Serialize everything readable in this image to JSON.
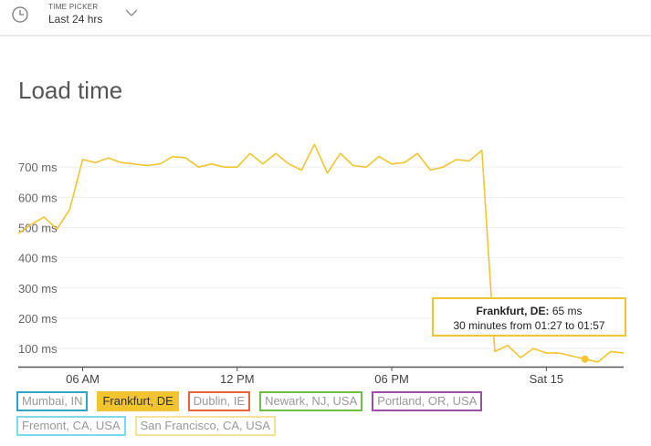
{
  "header": {
    "time_picker_label": "TIME PICKER",
    "time_picker_value": "Last 24 hrs",
    "icon": "clock-icon",
    "chevron_icon": "chevron-down-icon"
  },
  "chart_title": "Load time",
  "tooltip": {
    "series": "Frankfurt, DE:",
    "value": "65 ms",
    "range": "30 minutes from 01:27 to 01:57"
  },
  "legend": [
    {
      "label": "Mumbai, IN",
      "color": "#2fa4c9",
      "active": false
    },
    {
      "label": "Frankfurt, DE",
      "color": "#f2c530",
      "active": true
    },
    {
      "label": "Dublin, IE",
      "color": "#e8653a",
      "active": false
    },
    {
      "label": "Newark, NJ, USA",
      "color": "#6cc04a",
      "active": false
    },
    {
      "label": "Portland, OR, USA",
      "color": "#9d4faa",
      "active": false
    },
    {
      "label": "Fremont, CA, USA",
      "color": "#7fd8ec",
      "active": false
    },
    {
      "label": "San Francisco, CA, USA",
      "color": "#f5e39a",
      "active": false
    }
  ],
  "chart_data": {
    "type": "line",
    "title": "Load time",
    "ylim": [
      40,
      800
    ],
    "yticks": [
      100,
      200,
      300,
      400,
      500,
      600,
      700
    ],
    "ytick_labels": [
      "100 ms",
      "200 ms",
      "300 ms",
      "400 ms",
      "500 ms",
      "600 ms",
      "700 ms"
    ],
    "xlim": [
      0,
      47
    ],
    "xticks": [
      5,
      17,
      29,
      41
    ],
    "xtick_labels": [
      "06 AM",
      "12 PM",
      "06 PM",
      "Sat 15"
    ],
    "grid": true,
    "legend_position": "bottom",
    "series": [
      {
        "name": "Frankfurt, DE",
        "color": "#f2c530",
        "x": [
          0,
          1,
          2,
          3,
          4,
          5,
          6,
          7,
          8,
          9,
          10,
          11,
          12,
          13,
          14,
          15,
          16,
          17,
          18,
          19,
          20,
          21,
          22,
          23,
          24,
          25,
          26,
          27,
          28,
          29,
          30,
          31,
          32,
          33,
          34,
          35,
          36,
          37,
          38,
          39,
          40,
          41,
          42,
          43,
          44,
          45,
          46,
          47
        ],
        "values": [
          480,
          510,
          535,
          495,
          560,
          725,
          715,
          730,
          715,
          710,
          705,
          710,
          735,
          730,
          700,
          710,
          700,
          700,
          745,
          710,
          745,
          710,
          690,
          775,
          680,
          745,
          705,
          700,
          735,
          710,
          715,
          745,
          690,
          700,
          725,
          720,
          755,
          90,
          110,
          70,
          100,
          85,
          85,
          75,
          65,
          55,
          90,
          85
        ]
      }
    ],
    "highlight_point": {
      "x": 44,
      "y": 65
    }
  }
}
